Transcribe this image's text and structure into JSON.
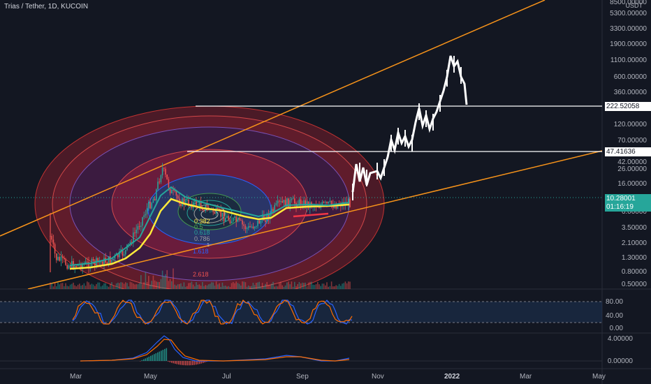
{
  "header": {
    "title": "Trias / Tether, 1D, KUCOIN"
  },
  "price_axis": {
    "currency": "USDT",
    "ticks": [
      "8500.00000",
      "5300.00000",
      "3300.00000",
      "1900.00000",
      "1100.00000",
      "600.00000",
      "360.00000",
      "120.00000",
      "70.00000",
      "42.00000",
      "26.00000",
      "16.00000",
      "6.00000",
      "3.50000",
      "2.10000",
      "1.30000",
      "0.80000",
      "0.50000"
    ]
  },
  "price_tags": [
    {
      "label": "222.52058",
      "style": "white"
    },
    {
      "label": "47.41636",
      "style": "white"
    },
    {
      "label": "10.28001",
      "style": "green"
    },
    {
      "label": "01:16:19",
      "style": "green"
    }
  ],
  "time_axis": {
    "labels": [
      "Mar",
      "May",
      "Jul",
      "Sep",
      "Nov",
      "2022",
      "Mar",
      "May"
    ]
  },
  "fib_levels": [
    "0.382",
    "0.5",
    "0.618",
    "0.786",
    "1",
    "1.618",
    "2.618"
  ],
  "oscillator": {
    "ticks": [
      "80.00",
      "40.00",
      "0.00"
    ]
  },
  "macd": {
    "ticks": [
      "4.00000",
      "0.00000"
    ]
  },
  "colors": {
    "background": "#131722",
    "trendline": "#f7931a",
    "horizontal_lines": "#ffffff",
    "ema_fast": "#26a69a",
    "ema_slow": "#ffeb3b",
    "current_price": "#26a69a",
    "fib_red": "#e53935",
    "fib_blue": "#2962ff"
  },
  "icons": {
    "drawing_tool": "fib-circle-icon"
  }
}
